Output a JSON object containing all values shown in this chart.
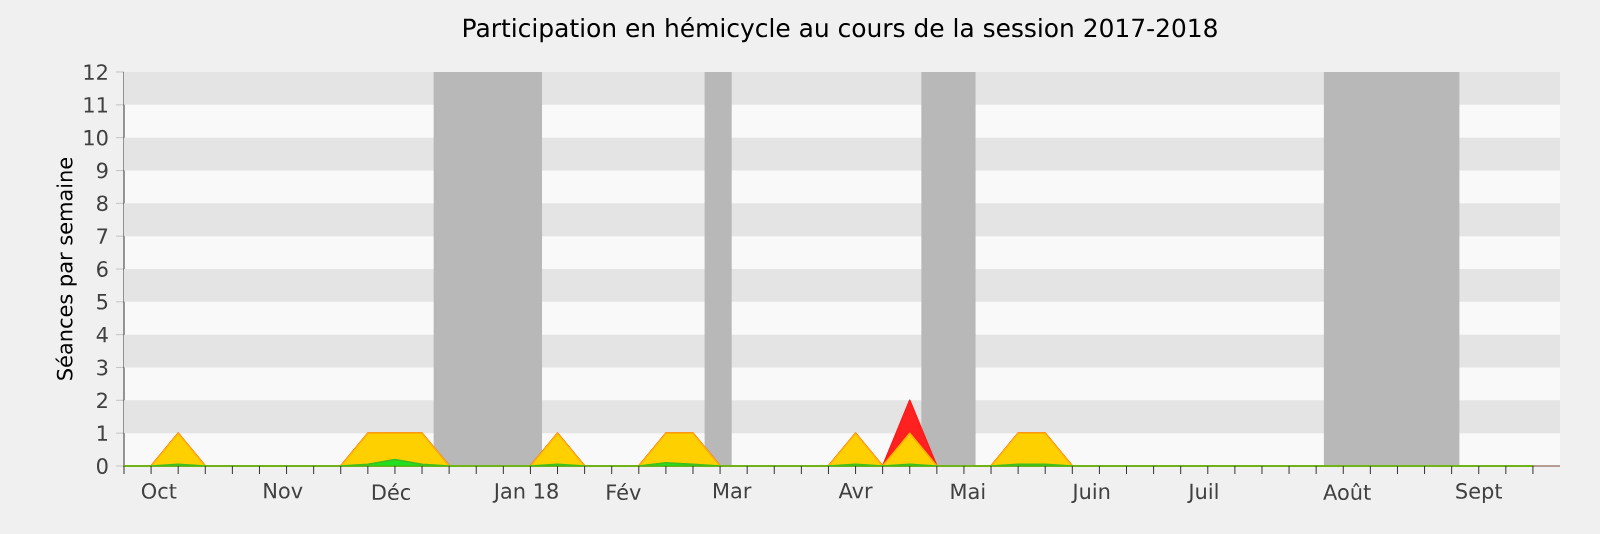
{
  "chart_data": {
    "type": "area",
    "title": "Participation en hémicycle au cours de la session 2017-2018",
    "ylabel": "Séances par semaine",
    "x": [
      "2017-09-25",
      "2017-10-02",
      "2017-10-09",
      "2017-10-16",
      "2017-10-23",
      "2017-10-30",
      "2017-11-06",
      "2017-11-13",
      "2017-11-20",
      "2017-11-27",
      "2017-12-04",
      "2017-12-11",
      "2017-12-18",
      "2017-12-25",
      "2018-01-01",
      "2018-01-08",
      "2018-01-15",
      "2018-01-22",
      "2018-01-29",
      "2018-02-05",
      "2018-02-12",
      "2018-02-19",
      "2018-02-26",
      "2018-03-05",
      "2018-03-12",
      "2018-03-19",
      "2018-03-26",
      "2018-04-02",
      "2018-04-09",
      "2018-04-16",
      "2018-04-23",
      "2018-04-30",
      "2018-05-07",
      "2018-05-14",
      "2018-05-21",
      "2018-05-28",
      "2018-06-04",
      "2018-06-11",
      "2018-06-18",
      "2018-06-25",
      "2018-07-02",
      "2018-07-09",
      "2018-07-16",
      "2018-07-23",
      "2018-07-30",
      "2018-08-06",
      "2018-08-13",
      "2018-08-20",
      "2018-08-27",
      "2018-09-03",
      "2018-09-10",
      "2018-09-17",
      "2018-09-24"
    ],
    "series": [
      {
        "color": "#ff2020",
        "values": [
          0,
          0,
          1,
          0,
          0,
          0,
          0,
          0,
          0,
          1,
          1,
          1,
          0,
          0,
          0,
          0,
          1,
          0,
          0,
          0,
          1,
          1,
          0,
          0,
          0,
          0,
          0,
          1,
          0,
          2,
          0,
          0,
          0,
          1,
          1,
          0,
          0,
          0,
          0,
          0,
          0,
          0,
          0,
          0,
          0,
          0,
          0,
          0,
          0,
          0,
          0,
          0,
          0
        ]
      },
      {
        "color": "#ffd000",
        "values": [
          0,
          0,
          1,
          0,
          0,
          0,
          0,
          0,
          0,
          1,
          1,
          1,
          0,
          0,
          0,
          0,
          1,
          0,
          0,
          0,
          1,
          1,
          0,
          0,
          0,
          0,
          0,
          1,
          0,
          1,
          0,
          0,
          0,
          1,
          1,
          0,
          0,
          0,
          0,
          0,
          0,
          0,
          0,
          0,
          0,
          0,
          0,
          0,
          0,
          0,
          0,
          0,
          0
        ]
      },
      {
        "color": "#20e020",
        "values": [
          0,
          0,
          0.05,
          0,
          0,
          0,
          0,
          0,
          0,
          0.05,
          0.2,
          0.05,
          0,
          0,
          0,
          0,
          0.05,
          0,
          0,
          0,
          0.1,
          0.05,
          0,
          0,
          0,
          0,
          0,
          0.05,
          0,
          0.05,
          0,
          0,
          0,
          0.05,
          0.05,
          0,
          0,
          0,
          0,
          0,
          0,
          0,
          0,
          0,
          0,
          0,
          0,
          0,
          0,
          0,
          0,
          0,
          0
        ]
      }
    ],
    "xlim": [
      "2017-09-25",
      "2018-10-01"
    ],
    "ylim": [
      0,
      12
    ],
    "yticks": [
      0,
      1,
      2,
      3,
      4,
      5,
      6,
      7,
      8,
      9,
      10,
      11,
      12
    ],
    "xticks": [
      {
        "value": "2017-10-04",
        "label": "Oct"
      },
      {
        "value": "2017-11-05",
        "label": "Nov"
      },
      {
        "value": "2017-12-03",
        "label": "Déc"
      },
      {
        "value": "2018-01-07",
        "label": "Jan 18"
      },
      {
        "value": "2018-02-01",
        "label": "Fév"
      },
      {
        "value": "2018-03-01",
        "label": "Mar"
      },
      {
        "value": "2018-04-02",
        "label": "Avr"
      },
      {
        "value": "2018-05-01",
        "label": "Mai"
      },
      {
        "value": "2018-06-02",
        "label": "Juin"
      },
      {
        "value": "2018-07-01",
        "label": "Juil"
      },
      {
        "value": "2018-08-07",
        "label": "Août"
      },
      {
        "value": "2018-09-10",
        "label": "Sept"
      },
      {
        "value": "2017-09-25",
        "label": null
      },
      {
        "value": "2017-10-02",
        "label": null
      },
      {
        "value": "2017-10-09",
        "label": null
      },
      {
        "value": "2017-10-16",
        "label": null
      },
      {
        "value": "2017-10-23",
        "label": null
      },
      {
        "value": "2017-10-30",
        "label": null
      },
      {
        "value": "2017-11-06",
        "label": null
      },
      {
        "value": "2017-11-13",
        "label": null
      },
      {
        "value": "2017-11-20",
        "label": null
      },
      {
        "value": "2017-11-27",
        "label": null
      },
      {
        "value": "2017-12-04",
        "label": null
      },
      {
        "value": "2017-12-11",
        "label": null
      },
      {
        "value": "2017-12-18",
        "label": null
      },
      {
        "value": "2017-12-25",
        "label": null
      },
      {
        "value": "2018-01-01",
        "label": null
      },
      {
        "value": "2018-01-08",
        "label": null
      },
      {
        "value": "2018-01-15",
        "label": null
      },
      {
        "value": "2018-01-22",
        "label": null
      },
      {
        "value": "2018-01-29",
        "label": null
      },
      {
        "value": "2018-02-05",
        "label": null
      },
      {
        "value": "2018-02-12",
        "label": null
      },
      {
        "value": "2018-02-19",
        "label": null
      },
      {
        "value": "2018-02-26",
        "label": null
      },
      {
        "value": "2018-03-05",
        "label": null
      },
      {
        "value": "2018-03-12",
        "label": null
      },
      {
        "value": "2018-03-19",
        "label": null
      },
      {
        "value": "2018-03-26",
        "label": null
      },
      {
        "value": "2018-04-02",
        "label": null
      },
      {
        "value": "2018-04-09",
        "label": null
      },
      {
        "value": "2018-04-16",
        "label": null
      },
      {
        "value": "2018-04-23",
        "label": null
      },
      {
        "value": "2018-04-30",
        "label": null
      },
      {
        "value": "2018-05-07",
        "label": null
      },
      {
        "value": "2018-05-14",
        "label": null
      },
      {
        "value": "2018-05-21",
        "label": null
      },
      {
        "value": "2018-05-28",
        "label": null
      },
      {
        "value": "2018-06-04",
        "label": null
      },
      {
        "value": "2018-06-11",
        "label": null
      },
      {
        "value": "2018-06-18",
        "label": null
      },
      {
        "value": "2018-06-25",
        "label": null
      },
      {
        "value": "2018-07-02",
        "label": null
      },
      {
        "value": "2018-07-09",
        "label": null
      },
      {
        "value": "2018-07-16",
        "label": null
      },
      {
        "value": "2018-07-23",
        "label": null
      },
      {
        "value": "2018-07-30",
        "label": null
      },
      {
        "value": "2018-08-06",
        "label": null
      },
      {
        "value": "2018-08-13",
        "label": null
      },
      {
        "value": "2018-08-20",
        "label": null
      },
      {
        "value": "2018-08-27",
        "label": null
      },
      {
        "value": "2018-09-03",
        "label": null
      },
      {
        "value": "2018-09-10",
        "label": null
      },
      {
        "value": "2018-09-17",
        "label": null
      },
      {
        "value": "2018-09-24",
        "label": null
      }
    ],
    "bands": [
      {
        "axis": "y",
        "from": 1,
        "to": 2,
        "color": "#e4e4e4"
      },
      {
        "axis": "y",
        "from": 3,
        "to": 4,
        "color": "#e4e4e4"
      },
      {
        "axis": "y",
        "from": 5,
        "to": 6,
        "color": "#e4e4e4"
      },
      {
        "axis": "y",
        "from": 7,
        "to": 8,
        "color": "#e4e4e4"
      },
      {
        "axis": "y",
        "from": 9,
        "to": 10,
        "color": "#e4e4e4"
      },
      {
        "axis": "y",
        "from": 11,
        "to": 12,
        "color": "#e4e4e4"
      },
      {
        "axis": "x",
        "from": "2017-12-14",
        "to": "2018-01-11",
        "color": "#b8b8b8"
      },
      {
        "axis": "x",
        "from": "2018-02-22",
        "to": "2018-03-01",
        "color": "#b8b8b8"
      },
      {
        "axis": "x",
        "from": "2018-04-19",
        "to": "2018-05-03",
        "color": "#b8b8b8"
      },
      {
        "axis": "x",
        "from": "2018-08-01",
        "to": "2018-09-05",
        "color": "#b8b8b8"
      }
    ]
  }
}
